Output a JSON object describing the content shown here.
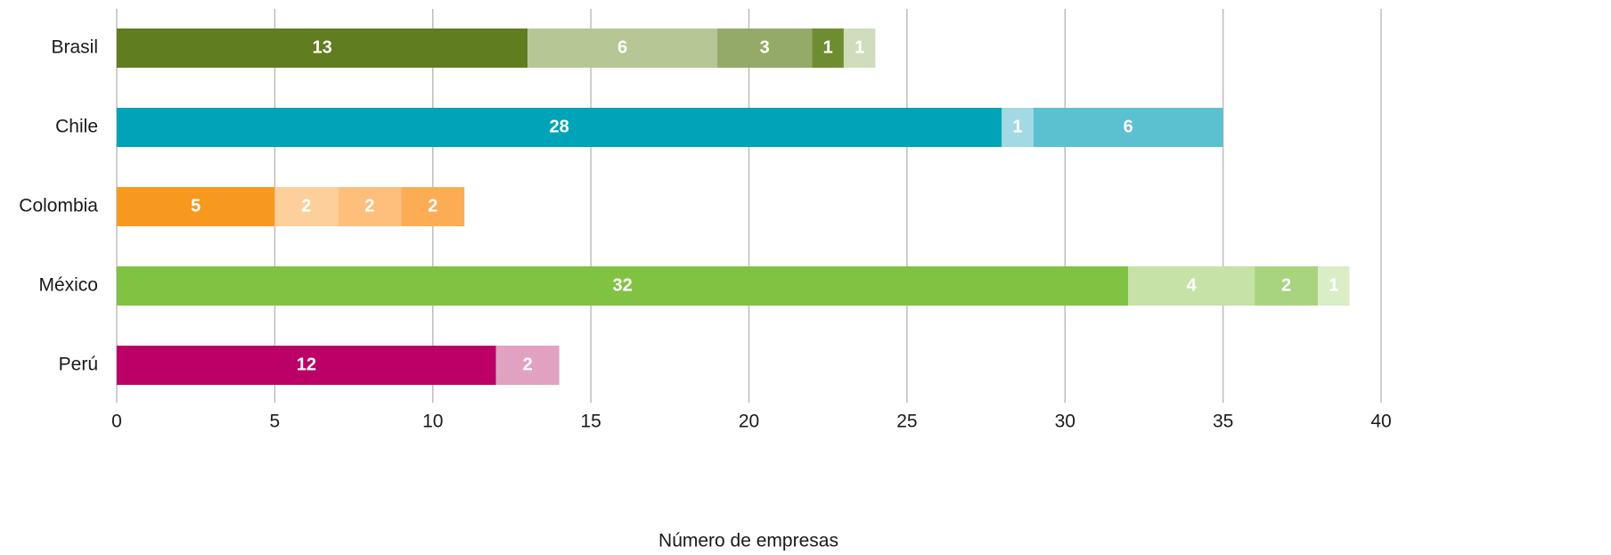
{
  "chart_data": {
    "type": "stacked-bar-horizontal",
    "x_label": "Número de empresas",
    "categories": [
      "Brasil",
      "Chile",
      "Colombia",
      "México",
      "Perú"
    ],
    "stacks": [
      [
        13,
        6,
        3,
        1,
        1
      ],
      [
        28,
        1,
        6
      ],
      [
        5,
        2,
        2,
        2
      ],
      [
        32,
        4,
        2,
        1
      ],
      [
        12,
        2
      ]
    ],
    "colors": [
      [
        "#607d20",
        "#b5c795",
        "#94aa68",
        "#6e8d30",
        "#d0dcbb"
      ],
      [
        "#00a3b8",
        "#a3d9e3",
        "#5bc0d0"
      ],
      [
        "#f7991f",
        "#fdd09b",
        "#fdbf7b",
        "#fbac55"
      ],
      [
        "#80c342",
        "#c6e2a7",
        "#a8d47f",
        "#d9edc6"
      ],
      [
        "#bb0067",
        "#e0a2c0"
      ]
    ],
    "xlim": [
      0,
      40
    ],
    "xticks": [
      0,
      5,
      10,
      15,
      20,
      25,
      30,
      35,
      40
    ],
    "grid": true
  }
}
